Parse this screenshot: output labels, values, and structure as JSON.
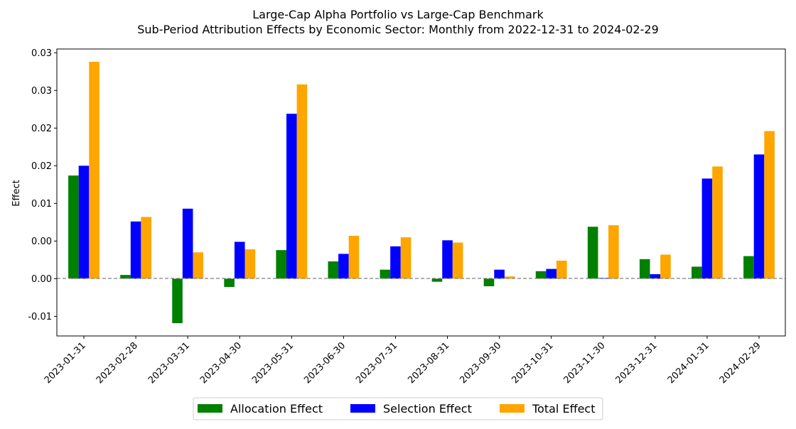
{
  "chart_data": {
    "type": "bar",
    "title": "Large-Cap Alpha Portfolio vs Large-Cap Benchmark",
    "subtitle": "Sub-Period Attribution Effects by Economic Sector: Monthly from 2022-12-31 to 2024-02-29",
    "xlabel": "",
    "ylabel": "Effect",
    "ylim": [
      -0.0076,
      0.0305
    ],
    "yticks": [
      0.03,
      0.025,
      0.02,
      0.015,
      0.01,
      0.005,
      0.0,
      -0.005
    ],
    "ytick_labels": [
      "0.03",
      "0.03",
      "0.02",
      "0.02",
      "0.01",
      "0.00",
      "0.00",
      "-0.01"
    ],
    "grid": false,
    "zero_line": "dashed gray",
    "legend_placement": "bottom-center",
    "categories": [
      "2023-01-31",
      "2023-02-28",
      "2023-03-31",
      "2023-04-30",
      "2023-05-31",
      "2023-06-30",
      "2023-07-31",
      "2023-08-31",
      "2023-09-30",
      "2023-10-31",
      "2023-11-30",
      "2023-12-31",
      "2024-01-31",
      "2024-02-29"
    ],
    "series": [
      {
        "name": "Allocation Effect",
        "color": "#008000",
        "values": [
          0.0137,
          0.0005,
          -0.0059,
          -0.0011,
          0.0038,
          0.0023,
          0.0012,
          -0.0004,
          -0.001,
          0.001,
          0.0069,
          0.0026,
          0.0016,
          0.003
        ]
      },
      {
        "name": "Selection Effect",
        "color": "#0000ff",
        "values": [
          0.015,
          0.0076,
          0.0093,
          0.0049,
          0.0219,
          0.0033,
          0.0043,
          0.0051,
          0.0012,
          0.0013,
          0.0001,
          0.0006,
          0.0133,
          0.0165
        ]
      },
      {
        "name": "Total Effect",
        "color": "#ffa500",
        "values": [
          0.0288,
          0.0082,
          0.0035,
          0.0039,
          0.0258,
          0.0057,
          0.0055,
          0.0048,
          0.0003,
          0.0024,
          0.0071,
          0.0032,
          0.0149,
          0.0196
        ]
      }
    ]
  }
}
